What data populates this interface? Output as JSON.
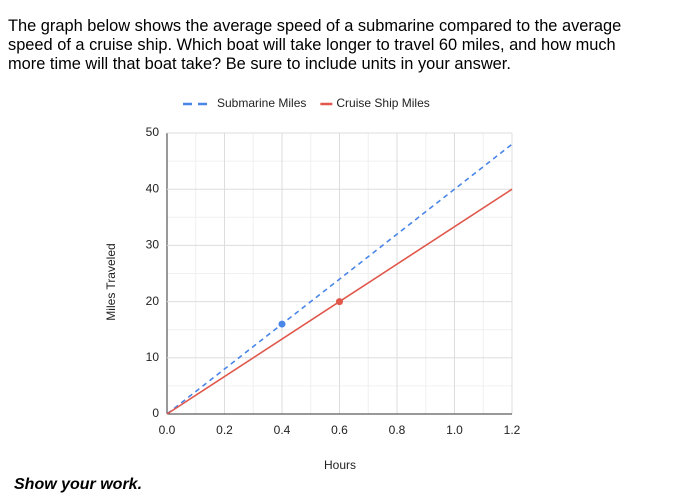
{
  "question": "The graph below shows the average speed of a submarine compared to the average speed of a cruise ship. Which boat will take longer to travel 60 miles, and how much more time will that boat take? Be sure to include units in your answer.",
  "chart_data": {
    "type": "line",
    "xlabel": "Hours",
    "ylabel": "Miles Traveled",
    "series": [
      {
        "name": "Submarine Miles",
        "color": "#4a86e8",
        "line_style": "dashed",
        "x": [
          0,
          0.4,
          1.2
        ],
        "values": [
          0,
          16,
          48
        ]
      },
      {
        "name": "Cruise Ship Miles",
        "color": "#e0574b",
        "line_style": "solid",
        "x": [
          0,
          0.6,
          1.2
        ],
        "values": [
          0,
          20,
          40
        ]
      }
    ],
    "xlim": [
      0,
      1.2
    ],
    "xticks": [
      {
        "value": 0,
        "label": "0.0"
      },
      0.2,
      0.4,
      0.6,
      0.8,
      {
        "value": 1,
        "label": "1.0"
      },
      1.2
    ],
    "ylim": [
      0,
      50
    ],
    "yticks": [
      0,
      10,
      20,
      30,
      40,
      50
    ],
    "grid": true,
    "legend": "top"
  },
  "footer": "Show your work."
}
